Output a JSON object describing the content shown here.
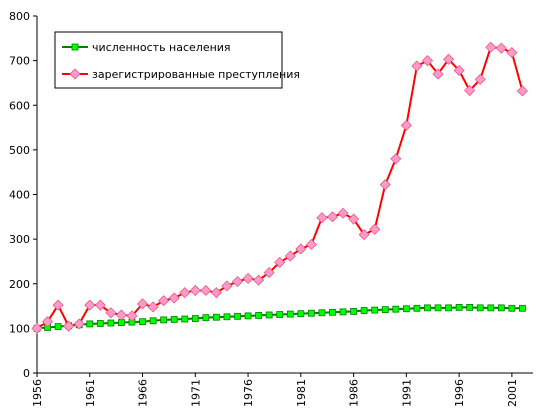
{
  "chart_data": {
    "type": "line",
    "x": [
      1956,
      1957,
      1958,
      1959,
      1960,
      1961,
      1962,
      1963,
      1964,
      1965,
      1966,
      1967,
      1968,
      1969,
      1970,
      1971,
      1972,
      1973,
      1974,
      1975,
      1976,
      1977,
      1978,
      1979,
      1980,
      1981,
      1982,
      1983,
      1984,
      1985,
      1986,
      1987,
      1988,
      1989,
      1990,
      1991,
      1992,
      1993,
      1994,
      1995,
      1996,
      1997,
      1998,
      1999,
      2000,
      2001,
      2002
    ],
    "xlim": [
      1956,
      2003
    ],
    "xticks": [
      1956,
      1961,
      1966,
      1971,
      1976,
      1981,
      1986,
      1991,
      1996,
      2001
    ],
    "ylim": [
      0,
      800
    ],
    "yticks": [
      0,
      100,
      200,
      300,
      400,
      500,
      600,
      700,
      800
    ],
    "grid": false,
    "legend": "top-left",
    "series": [
      {
        "name": "численность населения",
        "color": "#008000",
        "marker_color": "#00ff00",
        "marker": "square",
        "values": [
          100,
          102,
          104,
          106,
          108,
          110,
          111,
          112,
          113,
          114,
          115,
          117,
          119,
          120,
          121,
          122,
          124,
          125,
          126,
          127,
          128,
          129,
          130,
          131,
          132,
          133,
          134,
          135,
          136,
          137,
          138,
          140,
          141,
          142,
          143,
          144,
          145,
          146,
          146,
          146,
          147,
          147,
          146,
          146,
          146,
          145,
          145
        ]
      },
      {
        "name": "зарегистрированные преступления",
        "color": "#ff0000",
        "marker_color": "#ff99cc",
        "marker": "diamond",
        "values": [
          100,
          115,
          152,
          105,
          110,
          152,
          152,
          135,
          130,
          128,
          155,
          148,
          162,
          168,
          180,
          185,
          185,
          180,
          195,
          205,
          212,
          208,
          225,
          248,
          262,
          278,
          288,
          348,
          350,
          358,
          345,
          310,
          322,
          422,
          480,
          555,
          688,
          700,
          670,
          703,
          678,
          633,
          658,
          730,
          728,
          718,
          632
        ]
      }
    ]
  }
}
